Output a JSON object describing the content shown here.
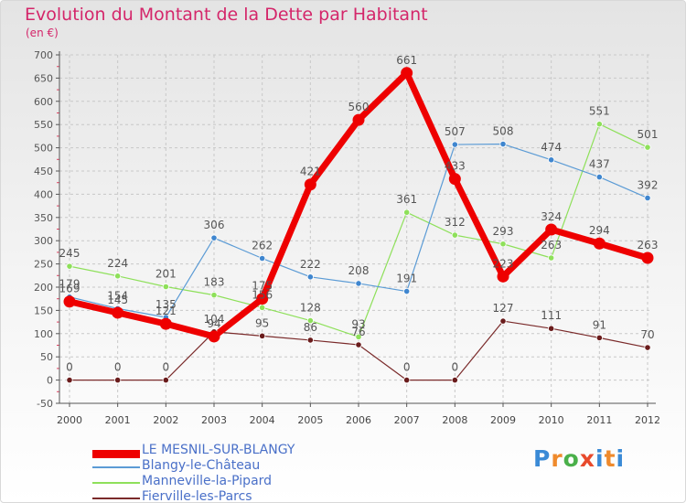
{
  "chart_data": {
    "type": "line",
    "title": "Evolution du Montant de la Dette par Habitant",
    "ylabel": "(en €)",
    "xlabel": "",
    "categories": [
      "2000",
      "2001",
      "2002",
      "2003",
      "2004",
      "2005",
      "2006",
      "2007",
      "2008",
      "2009",
      "2010",
      "2011",
      "2012"
    ],
    "ylim": [
      -50,
      700
    ],
    "yticks": [
      -50,
      0,
      50,
      100,
      150,
      200,
      250,
      300,
      350,
      400,
      450,
      500,
      550,
      600,
      650,
      700
    ],
    "grid": true,
    "legend_position": "bottom-left",
    "series": [
      {
        "name": "LE MESNIL-SUR-BLANGY",
        "color": "#ee0000",
        "width": 7,
        "values": [
          169,
          145,
          121,
          94,
          175,
          421,
          560,
          661,
          433,
          223,
          324,
          294,
          263
        ]
      },
      {
        "name": "Blangy-le-Château",
        "color": "#5b9bd5",
        "width": 1.2,
        "values": [
          179,
          154,
          135,
          306,
          262,
          222,
          208,
          191,
          507,
          508,
          474,
          437,
          392
        ]
      },
      {
        "name": "Manneville-la-Pipard",
        "color": "#8ee05a",
        "width": 1.2,
        "values": [
          245,
          224,
          201,
          183,
          156,
          128,
          93,
          361,
          312,
          293,
          263,
          551,
          501
        ]
      },
      {
        "name": "Fierville-les-Parcs",
        "color": "#7a2a2a",
        "width": 1.2,
        "values": [
          0,
          0,
          0,
          104,
          95,
          86,
          76,
          0,
          0,
          127,
          111,
          91,
          70
        ]
      }
    ],
    "data_labels": [
      {
        "series": "LE MESNIL-SUR-BLANGY",
        "values": [
          "169",
          "145",
          "121",
          "94",
          "175",
          "421",
          "560",
          "661",
          "433",
          "223",
          "324",
          "294",
          "263"
        ]
      },
      {
        "series": "Blangy-le-Château",
        "values": [
          "179",
          "154",
          "135",
          "306",
          "262",
          "222",
          "208",
          "191",
          "507",
          "508",
          "474",
          "437",
          "392"
        ]
      },
      {
        "series": "Manneville-la-Pipard",
        "values": [
          "245",
          "224",
          "201",
          "183",
          "156",
          "128",
          "93",
          "361",
          "312",
          "293",
          "263",
          "551",
          "501"
        ]
      },
      {
        "series": "Fierville-les-Parcs",
        "values": [
          "0",
          "0",
          "0",
          "104",
          "95",
          "86",
          "76",
          "0",
          "0",
          "127",
          "111",
          "91",
          "70"
        ]
      }
    ]
  },
  "branding": {
    "letters": [
      "P",
      "r",
      "o",
      "x",
      "i",
      "t",
      "i"
    ]
  }
}
